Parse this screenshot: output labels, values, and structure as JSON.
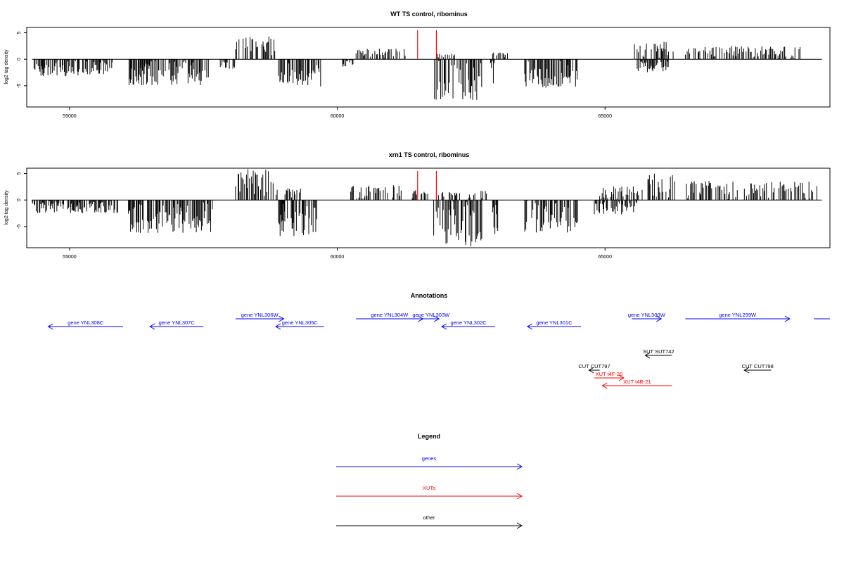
{
  "colors": {
    "gene": "#0000ff",
    "xut": "#ff0000",
    "other": "#000000",
    "marker": "#ff0000"
  },
  "chart_data": [
    {
      "type": "bar",
      "title": "WT TS control, ribominus",
      "ylabel": "log2 tag density",
      "xlim": [
        54200,
        69200
      ],
      "ylim": [
        -9,
        6
      ],
      "xticks": [
        55000,
        60000,
        65000
      ],
      "yticks": [
        5,
        0,
        -5
      ],
      "markers_x": [
        61500,
        61850
      ],
      "positive_segments": [
        {
          "start": 58100,
          "end": 58850,
          "max": 4.3
        },
        {
          "start": 60350,
          "end": 61300,
          "max": 2.0
        },
        {
          "start": 61850,
          "end": 62200,
          "max": 1.2
        },
        {
          "start": 62900,
          "end": 63200,
          "max": 1.6
        },
        {
          "start": 65550,
          "end": 66300,
          "max": 3.4
        },
        {
          "start": 66500,
          "end": 68700,
          "max": 2.5
        }
      ],
      "negative_segments": [
        {
          "start": 54300,
          "end": 55800,
          "min": -3.2
        },
        {
          "start": 56100,
          "end": 57600,
          "min": -5.0
        },
        {
          "start": 57800,
          "end": 58100,
          "min": -2.0
        },
        {
          "start": 58900,
          "end": 59700,
          "min": -5.2
        },
        {
          "start": 60100,
          "end": 60300,
          "min": -1.6
        },
        {
          "start": 61800,
          "end": 62700,
          "min": -7.8
        },
        {
          "start": 62850,
          "end": 62950,
          "min": -6.8
        },
        {
          "start": 63500,
          "end": 64500,
          "min": -5.6
        },
        {
          "start": 65600,
          "end": 66200,
          "min": -2.5
        }
      ]
    },
    {
      "type": "bar",
      "title": "xrn1 TS control, ribominus",
      "ylabel": "log2 tag density",
      "xlim": [
        54200,
        69200
      ],
      "ylim": [
        -9,
        6
      ],
      "xticks": [
        55000,
        60000,
        65000
      ],
      "yticks": [
        5,
        0,
        -5
      ],
      "markers_x": [
        61500,
        61850
      ],
      "positive_segments": [
        {
          "start": 58100,
          "end": 58900,
          "max": 5.8
        },
        {
          "start": 59000,
          "end": 59400,
          "max": 2.2
        },
        {
          "start": 60250,
          "end": 61200,
          "max": 2.8
        },
        {
          "start": 61400,
          "end": 61700,
          "max": 2.0
        },
        {
          "start": 61850,
          "end": 62300,
          "max": 1.5
        },
        {
          "start": 62450,
          "end": 62800,
          "max": 1.8
        },
        {
          "start": 64900,
          "end": 65700,
          "max": 2.6
        },
        {
          "start": 65800,
          "end": 66300,
          "max": 5.0
        },
        {
          "start": 66500,
          "end": 69000,
          "max": 3.6
        }
      ],
      "negative_segments": [
        {
          "start": 54300,
          "end": 55900,
          "min": -2.5
        },
        {
          "start": 56100,
          "end": 57700,
          "min": -6.2
        },
        {
          "start": 58900,
          "end": 59700,
          "min": -7.0
        },
        {
          "start": 61800,
          "end": 62700,
          "min": -8.8
        },
        {
          "start": 62900,
          "end": 63000,
          "min": -6.8
        },
        {
          "start": 63500,
          "end": 64500,
          "min": -6.3
        },
        {
          "start": 64800,
          "end": 65600,
          "min": -2.7
        }
      ]
    }
  ],
  "annotations": {
    "title": "Annotations",
    "features": [
      {
        "label": "gene YNL308C",
        "type": "gene",
        "start": 54600,
        "end": 56000,
        "dir": "left",
        "row": 1
      },
      {
        "label": "gene YNL307C",
        "type": "gene",
        "start": 56500,
        "end": 57500,
        "dir": "left",
        "row": 1
      },
      {
        "label": "gene YNL306W",
        "type": "gene",
        "start": 58100,
        "end": 59000,
        "dir": "right",
        "row": 0
      },
      {
        "label": "gene YNL305C",
        "type": "gene",
        "start": 58850,
        "end": 59750,
        "dir": "left",
        "row": 1
      },
      {
        "label": "gene YNL304W",
        "type": "gene",
        "start": 60350,
        "end": 61600,
        "dir": "right",
        "row": 0
      },
      {
        "label": "gene YNL303W",
        "type": "gene",
        "start": 61600,
        "end": 61900,
        "dir": "right",
        "row": 0
      },
      {
        "label": "gene YNL302C",
        "type": "gene",
        "start": 61950,
        "end": 62950,
        "dir": "left",
        "row": 1
      },
      {
        "label": "gene YNL301C",
        "type": "gene",
        "start": 63550,
        "end": 64550,
        "dir": "left",
        "row": 1
      },
      {
        "label": "gene YNL300W",
        "type": "gene",
        "start": 65500,
        "end": 66050,
        "dir": "right",
        "row": 0
      },
      {
        "label": "gene YNL299W",
        "type": "gene",
        "start": 66500,
        "end": 68450,
        "dir": "right",
        "row": 0
      },
      {
        "label": "",
        "type": "gene",
        "start": 68900,
        "end": 69200,
        "dir": "none",
        "row": 0
      },
      {
        "label": "SUT SUT742",
        "type": "other",
        "start": 65750,
        "end": 66250,
        "dir": "left",
        "row": 3
      },
      {
        "label": "CUT CUT797",
        "type": "other",
        "start": 64700,
        "end": 64900,
        "dir": "left",
        "row": 4
      },
      {
        "label": "CUT CUT798",
        "type": "other",
        "start": 67600,
        "end": 68100,
        "dir": "left",
        "row": 4
      },
      {
        "label": "XUT t4F-20",
        "type": "xut",
        "start": 64800,
        "end": 65350,
        "dir": "right",
        "row": 5
      },
      {
        "label": "XUT t4R-21",
        "type": "xut",
        "start": 64950,
        "end": 66250,
        "dir": "left",
        "row": 6
      }
    ]
  },
  "legend": {
    "title": "Legend",
    "items": [
      {
        "label": "genes",
        "type": "gene"
      },
      {
        "label": "XUTs",
        "type": "xut"
      },
      {
        "label": "other",
        "type": "other"
      }
    ]
  }
}
